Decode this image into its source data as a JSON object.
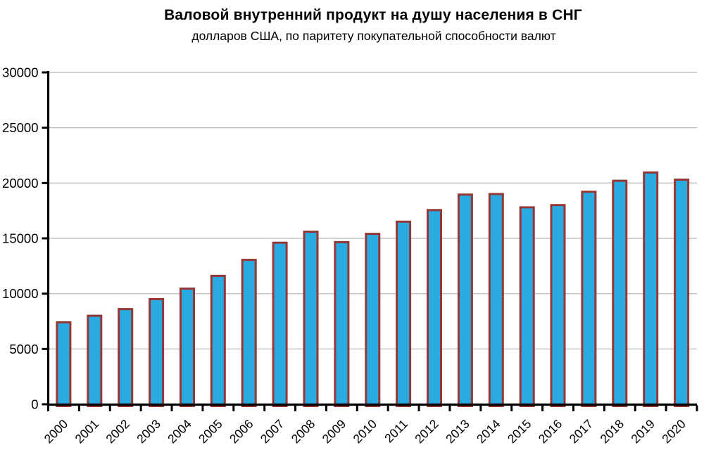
{
  "title": "Валовой внутренний продукт на душу населения в СНГ",
  "subtitle": "долларов США, по паритету покупательной способности валют",
  "chart_data": {
    "type": "bar",
    "title": "Валовой внутренний продукт на душу населения в СНГ",
    "subtitle": "долларов США, по паритету покупательной способности валют",
    "categories": [
      "2000",
      "2001",
      "2002",
      "2003",
      "2004",
      "2005",
      "2006",
      "2007",
      "2008",
      "2009",
      "2010",
      "2011",
      "2012",
      "2013",
      "2014",
      "2015",
      "2016",
      "2017",
      "2018",
      "2019",
      "2020"
    ],
    "values": [
      7500,
      8100,
      8700,
      9600,
      10550,
      11700,
      13150,
      14700,
      15700,
      14750,
      15500,
      16600,
      17650,
      19050,
      19100,
      17900,
      18100,
      19300,
      20300,
      21050,
      20400
    ],
    "xlabel": "",
    "ylabel": "",
    "ylim": [
      0,
      30000
    ],
    "ytick_step": 5000,
    "ytick_labels": [
      "0",
      "5000",
      "10000",
      "15000",
      "20000",
      "25000",
      "30000"
    ],
    "grid": "horizontal",
    "legend": "none",
    "x_label_rotation_deg": -45,
    "colors": {
      "bar_fill": "#29ABE2",
      "bar_border": "#953735",
      "gridline": "#C2C2C2",
      "axis": "#000000",
      "text": "#000000",
      "background": "#FFFFFF"
    }
  }
}
